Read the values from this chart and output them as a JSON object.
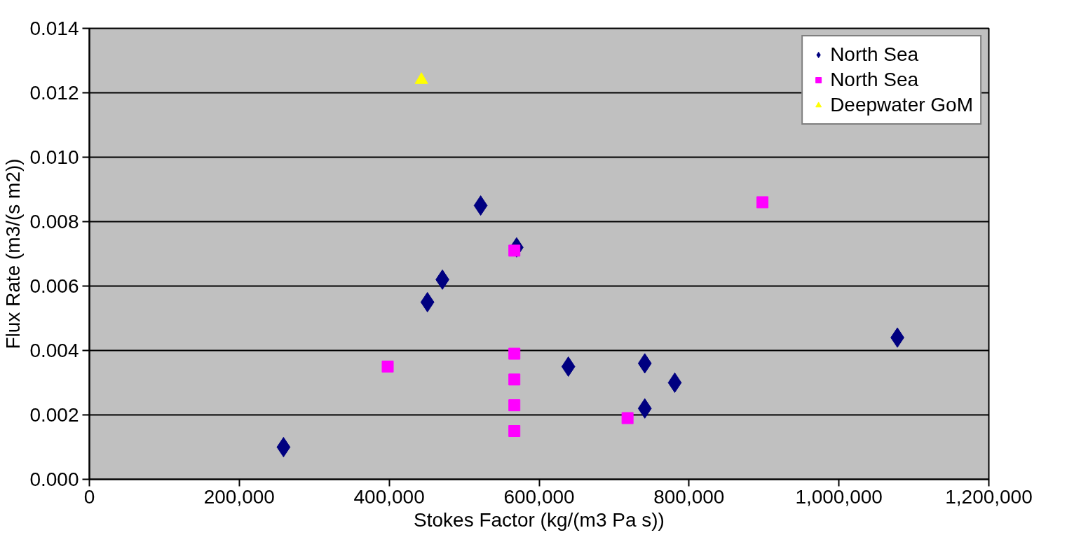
{
  "chart_data": {
    "type": "scatter",
    "xlabel": "Stokes Factor (kg/(m3 Pa s))",
    "ylabel": "Flux Rate (m3/(s m2))",
    "xlim": [
      0,
      1200000
    ],
    "ylim": [
      0,
      0.014
    ],
    "xticks": [
      {
        "value": 0,
        "label": "0"
      },
      {
        "value": 200000,
        "label": "200,000"
      },
      {
        "value": 400000,
        "label": "400,000"
      },
      {
        "value": 600000,
        "label": "600,000"
      },
      {
        "value": 800000,
        "label": "800,000"
      },
      {
        "value": 1000000,
        "label": "1,000,000"
      },
      {
        "value": 1200000,
        "label": "1,200,000"
      }
    ],
    "yticks": [
      {
        "value": 0,
        "label": "0.000"
      },
      {
        "value": 0.002,
        "label": "0.002"
      },
      {
        "value": 0.004,
        "label": "0.004"
      },
      {
        "value": 0.006,
        "label": "0.006"
      },
      {
        "value": 0.008,
        "label": "0.008"
      },
      {
        "value": 0.01,
        "label": "0.010"
      },
      {
        "value": 0.012,
        "label": "0.012"
      },
      {
        "value": 0.014,
        "label": "0.014"
      }
    ],
    "grid": "y",
    "legend": "top right",
    "series": [
      {
        "name": "North Sea",
        "color": "#000080",
        "marker": "diamond",
        "x": [
          259000,
          522000,
          570000,
          471000,
          451000,
          639000,
          741000,
          781000,
          741000,
          1078000
        ],
        "values": [
          0.001,
          0.0085,
          0.0072,
          0.0062,
          0.0055,
          0.0035,
          0.0036,
          0.003,
          0.0022,
          0.0044
        ]
      },
      {
        "name": "North Sea",
        "color": "#ff00ff",
        "marker": "square",
        "x": [
          567000,
          398000,
          567000,
          567000,
          567000,
          567000,
          718000,
          898000
        ],
        "values": [
          0.0071,
          0.0035,
          0.0039,
          0.0031,
          0.0023,
          0.0015,
          0.0019,
          0.0086
        ]
      },
      {
        "name": "Deepwater GoM",
        "color": "#ffff00",
        "marker": "triangle",
        "x": [
          443000
        ],
        "values": [
          0.0124
        ]
      }
    ]
  }
}
